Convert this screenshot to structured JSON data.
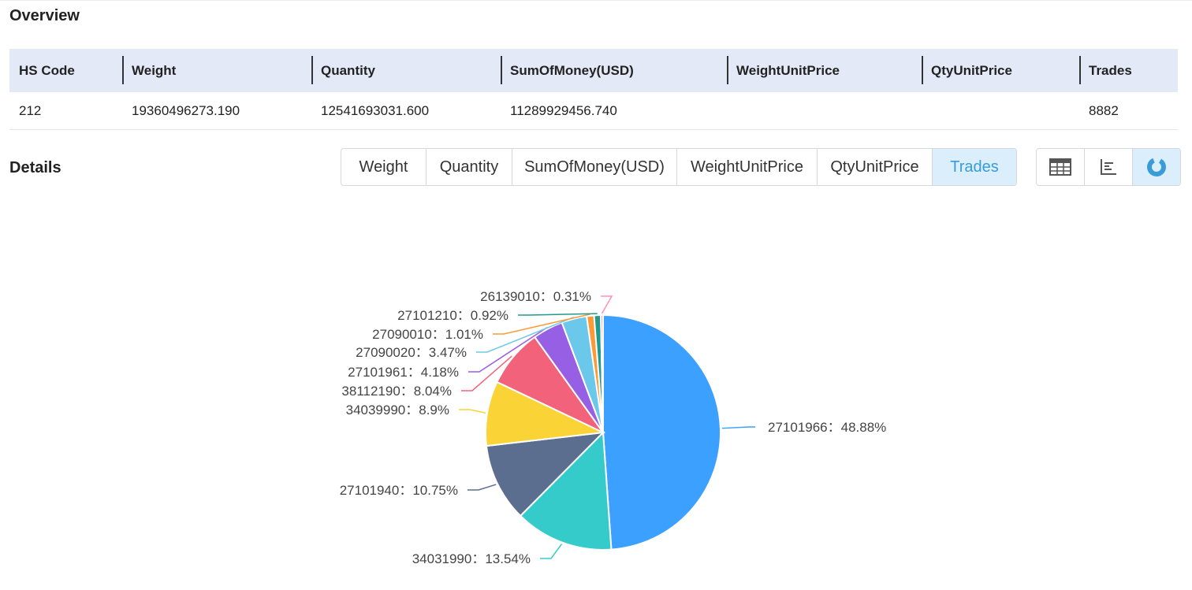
{
  "overview": {
    "title": "Overview",
    "columns": [
      "HS Code",
      "Weight",
      "Quantity",
      "SumOfMoney(USD)",
      "WeightUnitPrice",
      "QtyUnitPrice",
      "Trades"
    ],
    "row": [
      "212",
      "19360496273.190",
      "12541693031.600",
      "11289929456.740",
      "",
      "",
      "8882"
    ]
  },
  "details": {
    "title": "Details",
    "tabs": [
      "Weight",
      "Quantity",
      "SumOfMoney(USD)",
      "WeightUnitPrice",
      "QtyUnitPrice",
      "Trades"
    ],
    "active_tab": "Trades",
    "view_buttons": [
      {
        "icon": "table-icon"
      },
      {
        "icon": "bar-chart-icon"
      },
      {
        "icon": "pie-chart-icon",
        "active": true
      }
    ]
  },
  "colors": {
    "active_tab_bg": "#dbeefb",
    "active_tab_text": "#3a9bd9",
    "header_bg": "#e3e9f7"
  },
  "chart_data": {
    "type": "pie",
    "slices": [
      {
        "label": "27101966",
        "value": 48.88,
        "display": "27101966：48.88%",
        "color": "#3ba0ff"
      },
      {
        "label": "34031990",
        "value": 13.54,
        "display": "34031990：13.54%",
        "color": "#36cbcb"
      },
      {
        "label": "27101940",
        "value": 10.75,
        "display": "27101940：10.75%",
        "color": "#5b6e8f"
      },
      {
        "label": "34039990",
        "value": 8.9,
        "display": "34039990：8.9%",
        "color": "#fad337"
      },
      {
        "label": "38112190",
        "value": 8.04,
        "display": "38112190：8.04%",
        "color": "#f2637b"
      },
      {
        "label": "27101961",
        "value": 4.18,
        "display": "27101961：4.18%",
        "color": "#975fe4"
      },
      {
        "label": "27090020",
        "value": 3.47,
        "display": "27090020：3.47%",
        "color": "#6cc8ea"
      },
      {
        "label": "27090010",
        "value": 1.01,
        "display": "27090010：1.01%",
        "color": "#fd9a38"
      },
      {
        "label": "27101210",
        "value": 0.92,
        "display": "27101210：0.92%",
        "color": "#1f9a8e"
      },
      {
        "label": "26139010",
        "value": 0.31,
        "display": "26139010：0.31%",
        "color": "#ff8fb8"
      }
    ]
  }
}
